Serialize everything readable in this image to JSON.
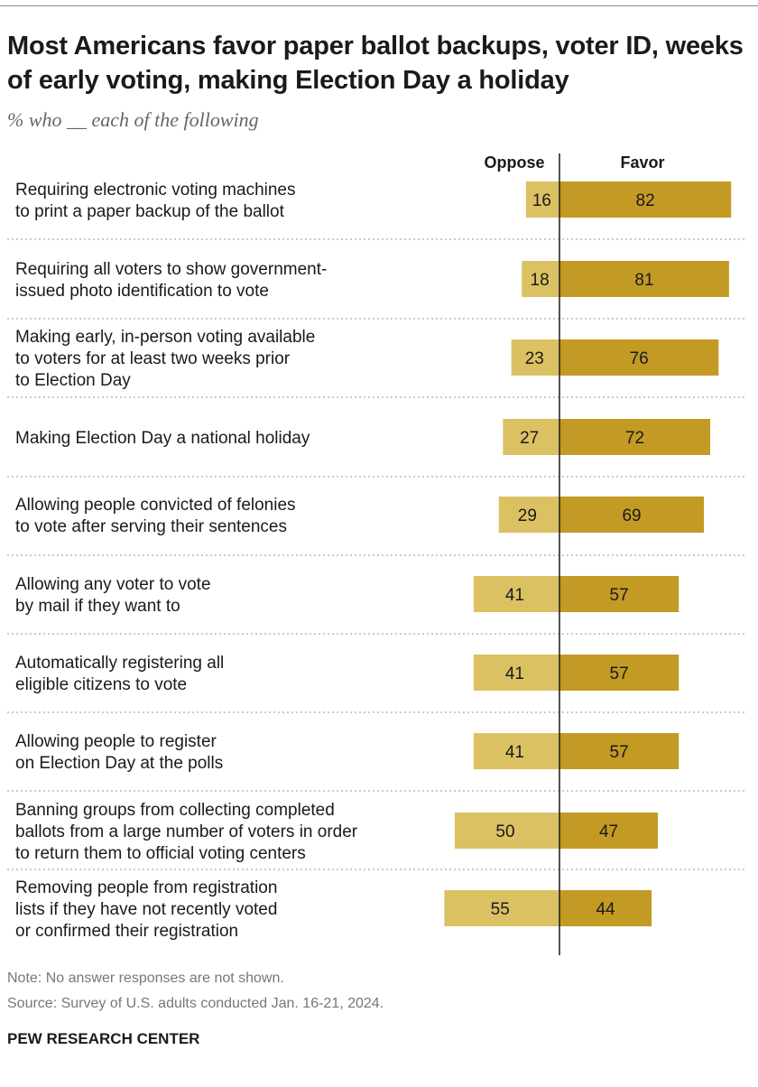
{
  "title": "Most Americans favor paper ballot backups, voter ID, weeks of early voting, making Election Day a holiday",
  "subtitle": "% who __ each of the following",
  "note": "Note: No answer responses are not shown.",
  "source": "Source: Survey of U.S. adults conducted Jan. 16-21, 2024.",
  "brand": "PEW RESEARCH CENTER",
  "colors": {
    "oppose": "#dcc163",
    "favor": "#c39a24",
    "divider": "#1a1a1a",
    "row_rule": "#aaaaaa"
  },
  "chart_data": {
    "type": "bar",
    "orientation": "horizontal-diverging",
    "categories": [
      [
        "Requiring electronic voting machines",
        "to print a paper backup of the ballot"
      ],
      [
        "Requiring all voters to show government-",
        "issued photo identification to vote"
      ],
      [
        "Making early, in-person voting available",
        "to voters for at least two weeks prior",
        "to Election Day"
      ],
      [
        "Making Election Day a national holiday"
      ],
      [
        "Allowing people convicted of felonies",
        "to vote after serving their sentences"
      ],
      [
        "Allowing any voter to vote",
        "by mail if they want to"
      ],
      [
        "Automatically registering all",
        "eligible citizens to vote"
      ],
      [
        "Allowing people to register",
        "on Election Day at the polls"
      ],
      [
        "Banning groups from collecting completed",
        "ballots from a large number of voters in order",
        "to return them to official voting centers"
      ],
      [
        "Removing people from registration",
        "lists if they have not recently voted",
        "or confirmed their registration"
      ]
    ],
    "series": [
      {
        "name": "Oppose",
        "values": [
          16,
          18,
          23,
          27,
          29,
          41,
          41,
          41,
          50,
          55
        ]
      },
      {
        "name": "Favor",
        "values": [
          82,
          81,
          76,
          72,
          69,
          57,
          57,
          57,
          47,
          44
        ]
      }
    ]
  }
}
